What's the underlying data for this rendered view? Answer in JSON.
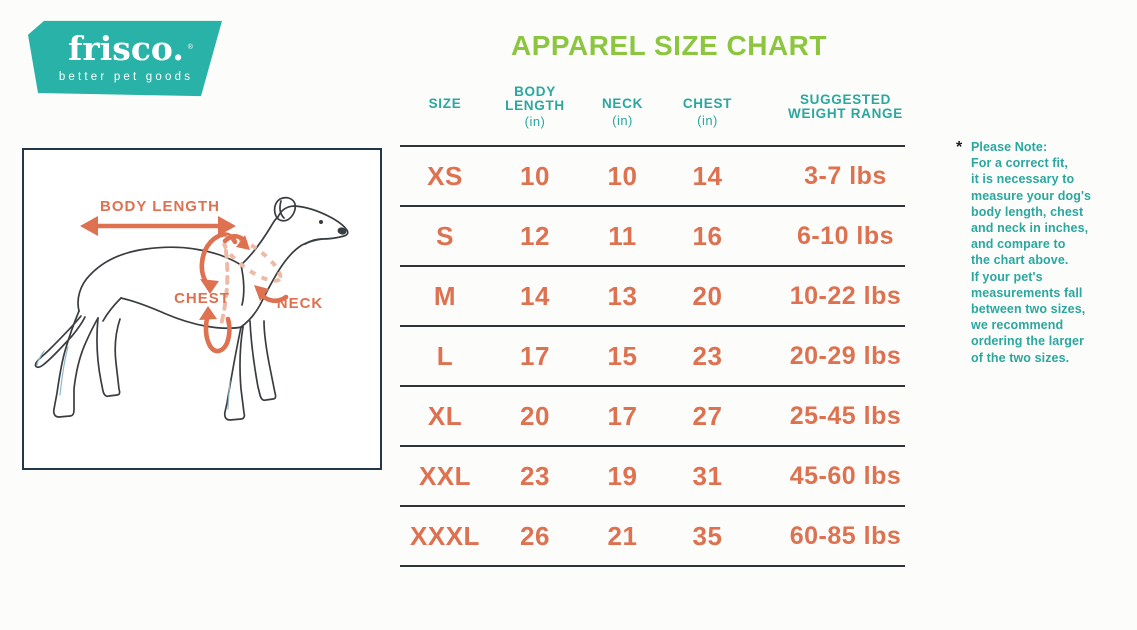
{
  "logo": {
    "brand": "frisco.",
    "trademark": "®",
    "tagline": "better pet goods"
  },
  "title": "APPAREL SIZE CHART",
  "diagram": {
    "labels": {
      "body_length": "BODY LENGTH",
      "chest": "CHEST",
      "neck": "NECK"
    }
  },
  "table": {
    "headers": [
      {
        "lines": [
          "SIZE"
        ],
        "unit": ""
      },
      {
        "lines": [
          "BODY",
          "LENGTH"
        ],
        "unit": "(in)"
      },
      {
        "lines": [
          "NECK"
        ],
        "unit": "(in)"
      },
      {
        "lines": [
          "CHEST"
        ],
        "unit": "(in)"
      },
      {
        "lines": [
          "SUGGESTED",
          "WEIGHT RANGE"
        ],
        "unit": ""
      }
    ],
    "rows": [
      {
        "size": "XS",
        "body_length": "10",
        "neck": "10",
        "chest": "14",
        "weight": "3-7 lbs"
      },
      {
        "size": "S",
        "body_length": "12",
        "neck": "11",
        "chest": "16",
        "weight": "6-10 lbs"
      },
      {
        "size": "M",
        "body_length": "14",
        "neck": "13",
        "chest": "20",
        "weight": "10-22 lbs"
      },
      {
        "size": "L",
        "body_length": "17",
        "neck": "15",
        "chest": "23",
        "weight": "20-29 lbs"
      },
      {
        "size": "XL",
        "body_length": "20",
        "neck": "17",
        "chest": "27",
        "weight": "25-45 lbs"
      },
      {
        "size": "XXL",
        "body_length": "23",
        "neck": "19",
        "chest": "31",
        "weight": "45-60 lbs"
      },
      {
        "size": "XXXL",
        "body_length": "26",
        "neck": "21",
        "chest": "35",
        "weight": "60-85 lbs"
      }
    ]
  },
  "note": {
    "marker": "*",
    "lines": [
      "Please Note:",
      "For a correct fit,",
      "it is necessary to",
      "measure your dog's",
      "body length, chest",
      "and neck in inches,",
      "and compare to",
      "the chart above.",
      "If your pet's",
      "measurements fall",
      "between two sizes,",
      "we recommend",
      "ordering the larger",
      "of the two sizes."
    ]
  },
  "colors": {
    "brand_teal": "#29b2a7",
    "title_green": "#8cc63f",
    "accent_orange": "#dd7150",
    "label_teal": "#2aa79f",
    "line_dark": "#303436"
  }
}
